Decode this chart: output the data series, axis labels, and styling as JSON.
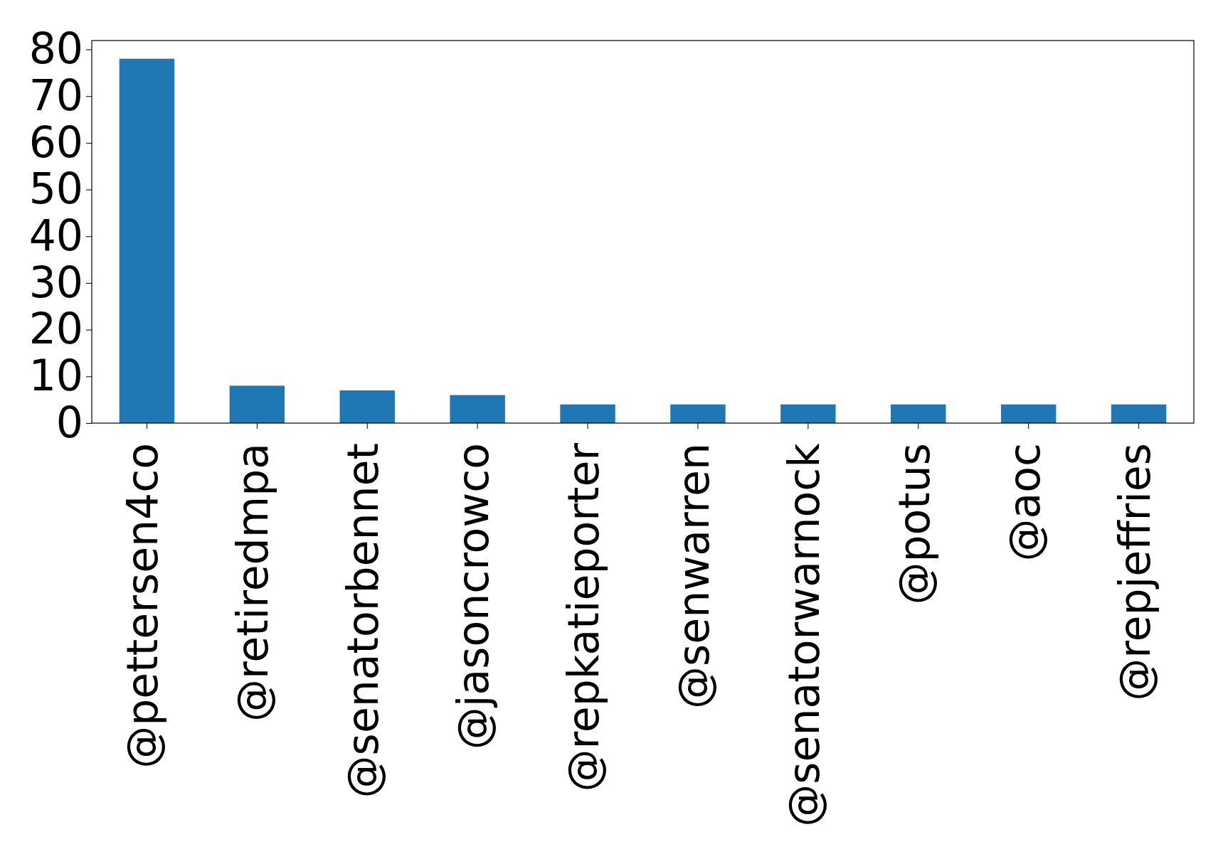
{
  "chart_data": {
    "type": "bar",
    "categories": [
      "@pettersen4co",
      "@retiredmpa",
      "@senatorbennet",
      "@jasoncrowco",
      "@repkatieporter",
      "@senwarren",
      "@senatorwarnock",
      "@potus",
      "@aoc",
      "@repjeffries"
    ],
    "values": [
      78,
      8,
      7,
      6,
      4,
      4,
      4,
      4,
      4,
      4
    ],
    "color": "#1f77b4",
    "ylim": [
      0,
      81.9
    ],
    "yticks": [
      0,
      10,
      20,
      30,
      40,
      50,
      60,
      70,
      80
    ],
    "grid": false
  }
}
